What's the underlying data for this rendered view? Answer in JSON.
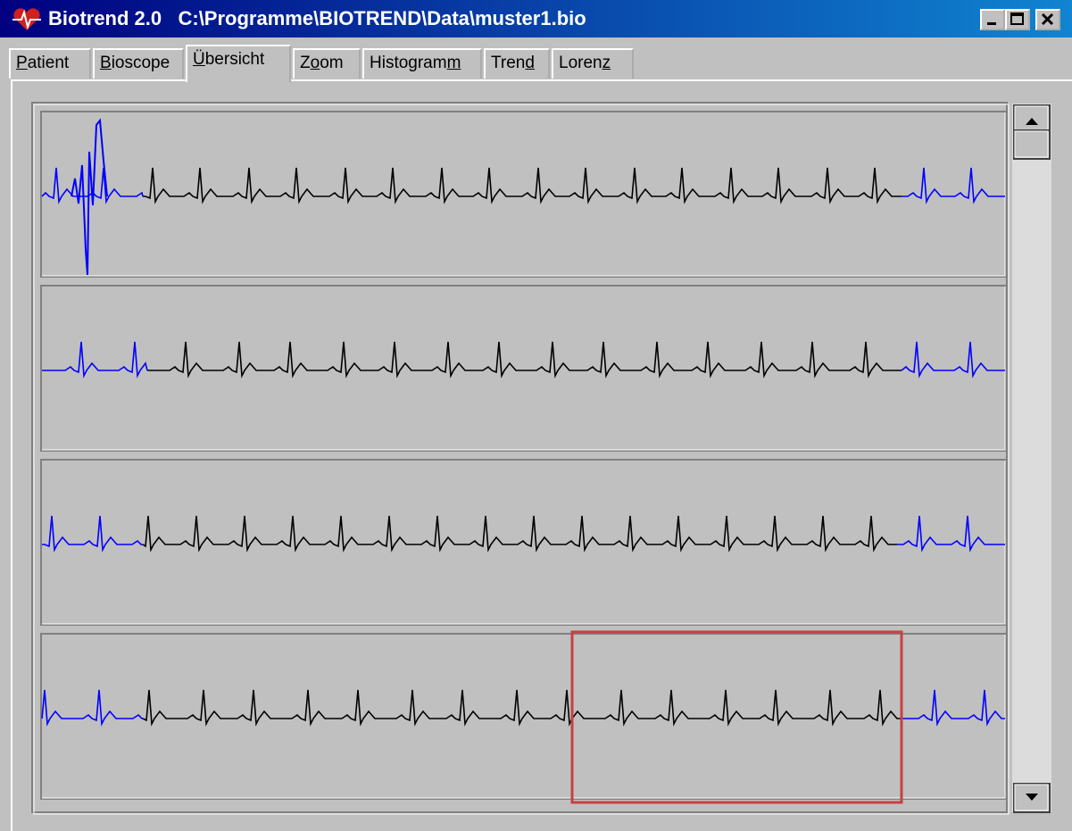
{
  "window": {
    "app": "Biotrend 2.0",
    "path": "C:\\Programme\\BIOTREND\\Data\\muster1.bio"
  },
  "tabs": [
    {
      "label": "Patient",
      "hotkey": 0
    },
    {
      "label": "Bioscope",
      "hotkey": 0
    },
    {
      "label": "Übersicht",
      "hotkey": 0
    },
    {
      "label": "Zoom",
      "hotkey": 1
    },
    {
      "label": "Histogramm",
      "hotkey": 9
    },
    {
      "label": "Trend",
      "hotkey": 4
    },
    {
      "label": "Lorenz",
      "hotkey": 5
    }
  ],
  "active_tab": 2
}
